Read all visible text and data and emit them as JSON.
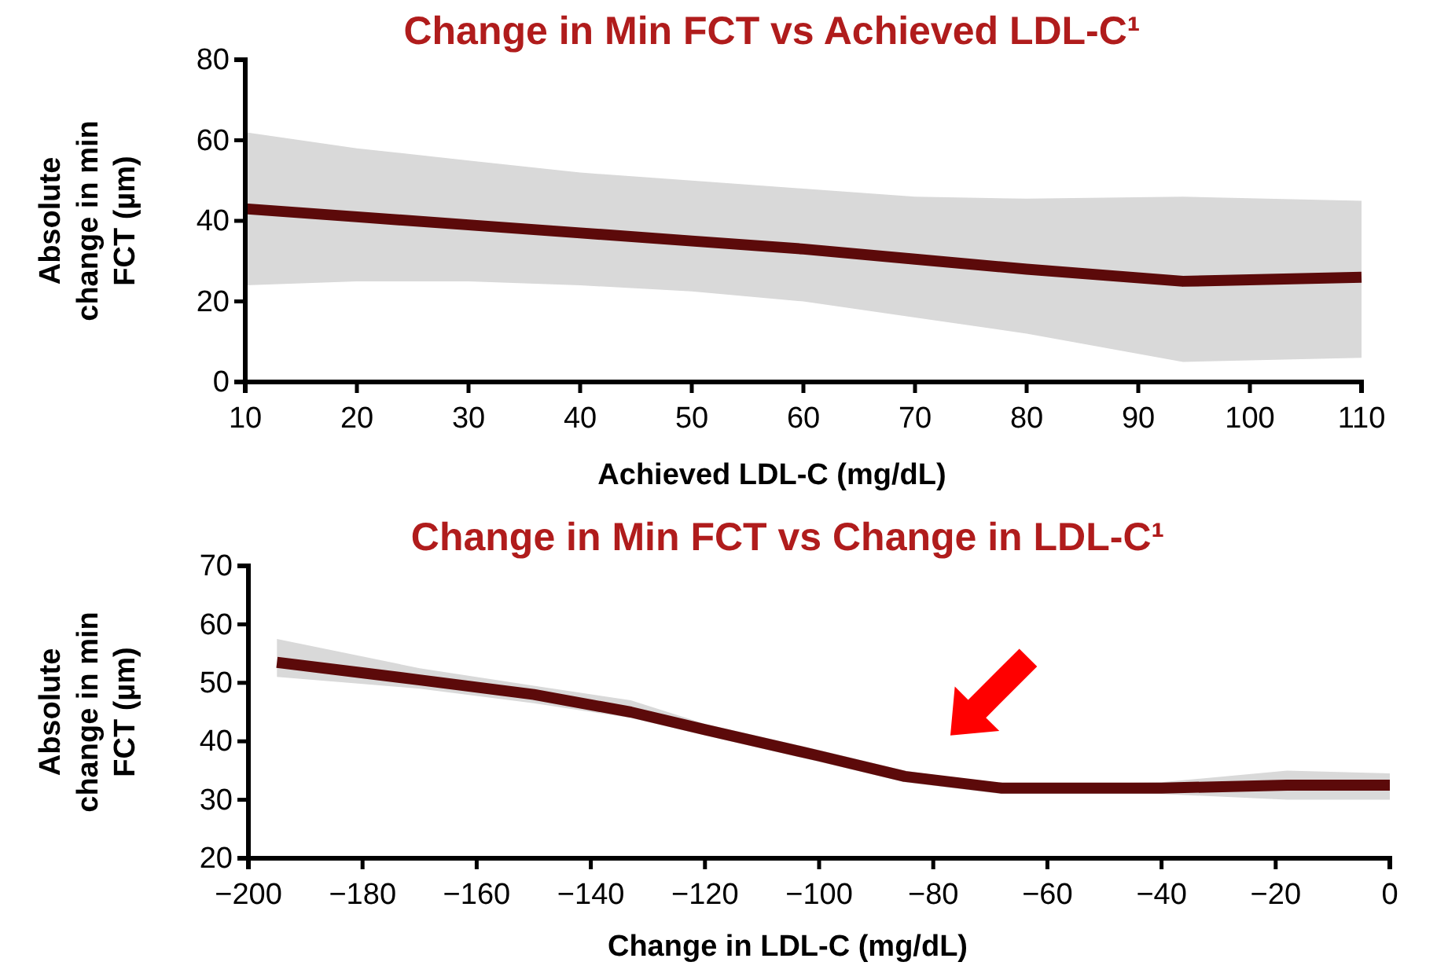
{
  "chart_data": [
    {
      "type": "line",
      "title": "Change in Min FCT vs Achieved LDL-C¹",
      "xlabel": "Achieved LDL-C (mg/dL)",
      "ylabel": "Absolute change in min FCT (µm)",
      "xlim": [
        10,
        110
      ],
      "xticks": [
        10,
        20,
        30,
        40,
        50,
        60,
        70,
        80,
        90,
        100,
        110
      ],
      "ylim": [
        0,
        80
      ],
      "yticks": [
        0,
        20,
        40,
        60,
        80
      ],
      "grid": false,
      "marker": "none",
      "line_style": "solid",
      "series": [
        {
          "color": "#5c0a0a",
          "x": [
            10,
            20,
            30,
            40,
            50,
            60,
            70,
            80,
            94,
            110
          ],
          "values": [
            43,
            41,
            39,
            37,
            35,
            33,
            30.5,
            28,
            25,
            26
          ],
          "lower": [
            24,
            25,
            25,
            24,
            22.5,
            20,
            16,
            12,
            5,
            6
          ],
          "upper": [
            62,
            58,
            55,
            52,
            50,
            48,
            46,
            45.5,
            46,
            45
          ]
        }
      ]
    },
    {
      "type": "line",
      "title": "Change in Min FCT vs Change in LDL-C¹",
      "xlabel": "Change in LDL-C (mg/dL)",
      "ylabel": "Absolute change in min FCT (µm)",
      "xlim": [
        -200,
        0
      ],
      "xticks": [
        {
          "value": -200,
          "label": "−200"
        },
        {
          "value": -180,
          "label": "−180"
        },
        {
          "value": -160,
          "label": "−160"
        },
        {
          "value": -140,
          "label": "−140"
        },
        {
          "value": -120,
          "label": "−120"
        },
        {
          "value": -100,
          "label": "−100"
        },
        {
          "value": -80,
          "label": "−80"
        },
        {
          "value": -60,
          "label": "−60"
        },
        {
          "value": -40,
          "label": "−40"
        },
        {
          "value": -20,
          "label": "−20"
        },
        0
      ],
      "ylim": [
        20,
        70
      ],
      "yticks": [
        20,
        30,
        40,
        50,
        60,
        70
      ],
      "grid": false,
      "marker": "none",
      "line_style": "solid",
      "series": [
        {
          "color": "#5c0a0a",
          "x": [
            -195,
            -170,
            -150,
            -133,
            -120,
            -100,
            -85,
            -68,
            -40,
            -18,
            0
          ],
          "values": [
            53.5,
            50.5,
            48,
            45,
            42,
            37.5,
            34,
            32,
            32,
            32.5,
            32.5
          ],
          "lower": [
            51,
            49,
            46.5,
            44,
            41,
            36.5,
            33,
            31,
            31,
            30,
            30
          ],
          "upper": [
            57.5,
            52.5,
            49.5,
            47,
            43,
            38.5,
            35,
            32.5,
            33,
            35,
            34.5
          ]
        }
      ]
    }
  ]
}
